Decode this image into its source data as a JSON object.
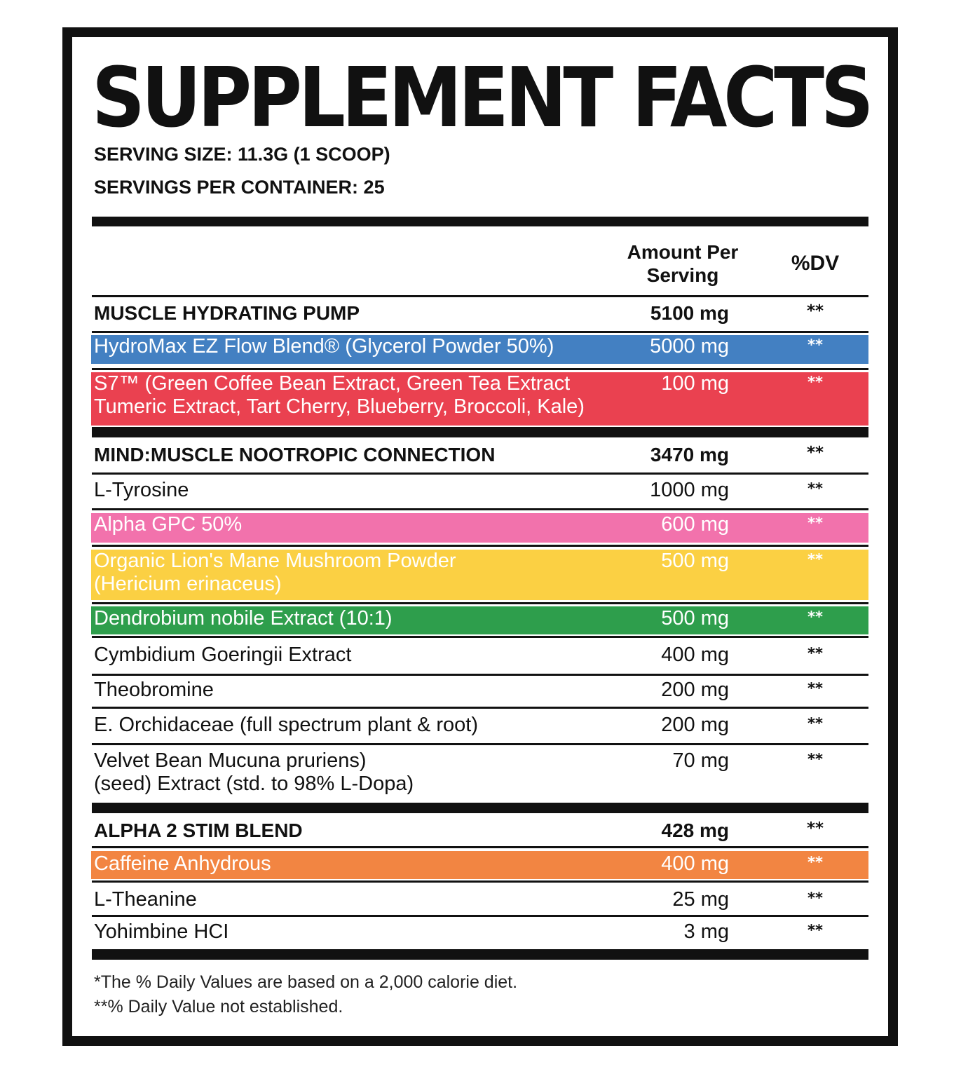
{
  "title": "SUPPLEMENT FACTS",
  "serving_size": "SERVING SIZE: 11.3G (1 SCOOP)",
  "servings_per_container": "SERVINGS PER CONTAINER: 25",
  "headers": {
    "amount_line1": "Amount Per",
    "amount_line2": "Serving",
    "dv": "%DV"
  },
  "rows": [
    {
      "name": "MUSCLE HYDRATING PUMP",
      "amount": "5100 mg",
      "dv": "**",
      "type": "section"
    },
    {
      "name": "HydroMax EZ Flow Blend® (Glycerol Powder 50%)",
      "amount": "5000 mg",
      "dv": "**",
      "color": "#4380c2"
    },
    {
      "name": "S7™ (Green Coffee Bean Extract, Green Tea Extract",
      "name2": "Tumeric Extract, Tart Cherry, Blueberry, Broccoli, Kale)",
      "amount": "100 mg",
      "dv": "**",
      "color": "#ea4150"
    },
    {
      "name": "MIND:MUSCLE NOOTROPIC CONNECTION",
      "amount": "3470 mg",
      "dv": "**",
      "type": "section"
    },
    {
      "name": "L-Tyrosine",
      "amount": "1000 mg",
      "dv": "**"
    },
    {
      "name": "Alpha GPC 50%",
      "amount": "600 mg",
      "dv": "**",
      "color": "#f272ac"
    },
    {
      "name": "Organic Lion's Mane Mushroom Powder",
      "name2": "(Hericium erinaceus)",
      "amount": "500 mg",
      "dv": "**",
      "color": "#fbd043"
    },
    {
      "name": "Dendrobium nobile Extract (10:1)",
      "amount": "500 mg",
      "dv": "**",
      "color": "#2e9e4c"
    },
    {
      "name": "Cymbidium Goeringii Extract",
      "amount": "400 mg",
      "dv": "**"
    },
    {
      "name": "Theobromine",
      "amount": "200 mg",
      "dv": "**"
    },
    {
      "name": "E. Orchidaceae (full spectrum plant & root)",
      "amount": "200 mg",
      "dv": "**"
    },
    {
      "name": "Velvet Bean Mucuna pruriens)",
      "name2": "(seed) Extract (std. to 98% L-Dopa)",
      "amount": "70 mg",
      "dv": "**"
    },
    {
      "name": "ALPHA 2 STIM BLEND",
      "amount": "428 mg",
      "dv": "**",
      "type": "section"
    },
    {
      "name": "Caffeine Anhydrous",
      "amount": "400 mg",
      "dv": "**",
      "color": "#f28542"
    },
    {
      "name": "L-Theanine",
      "amount": "25 mg",
      "dv": "**"
    },
    {
      "name": "Yohimbine HCI",
      "amount": "3 mg",
      "dv": "**"
    }
  ],
  "footnotes": [
    "*The % Daily Values are based on a 2,000 calorie diet.",
    "**% Daily Value not established."
  ]
}
